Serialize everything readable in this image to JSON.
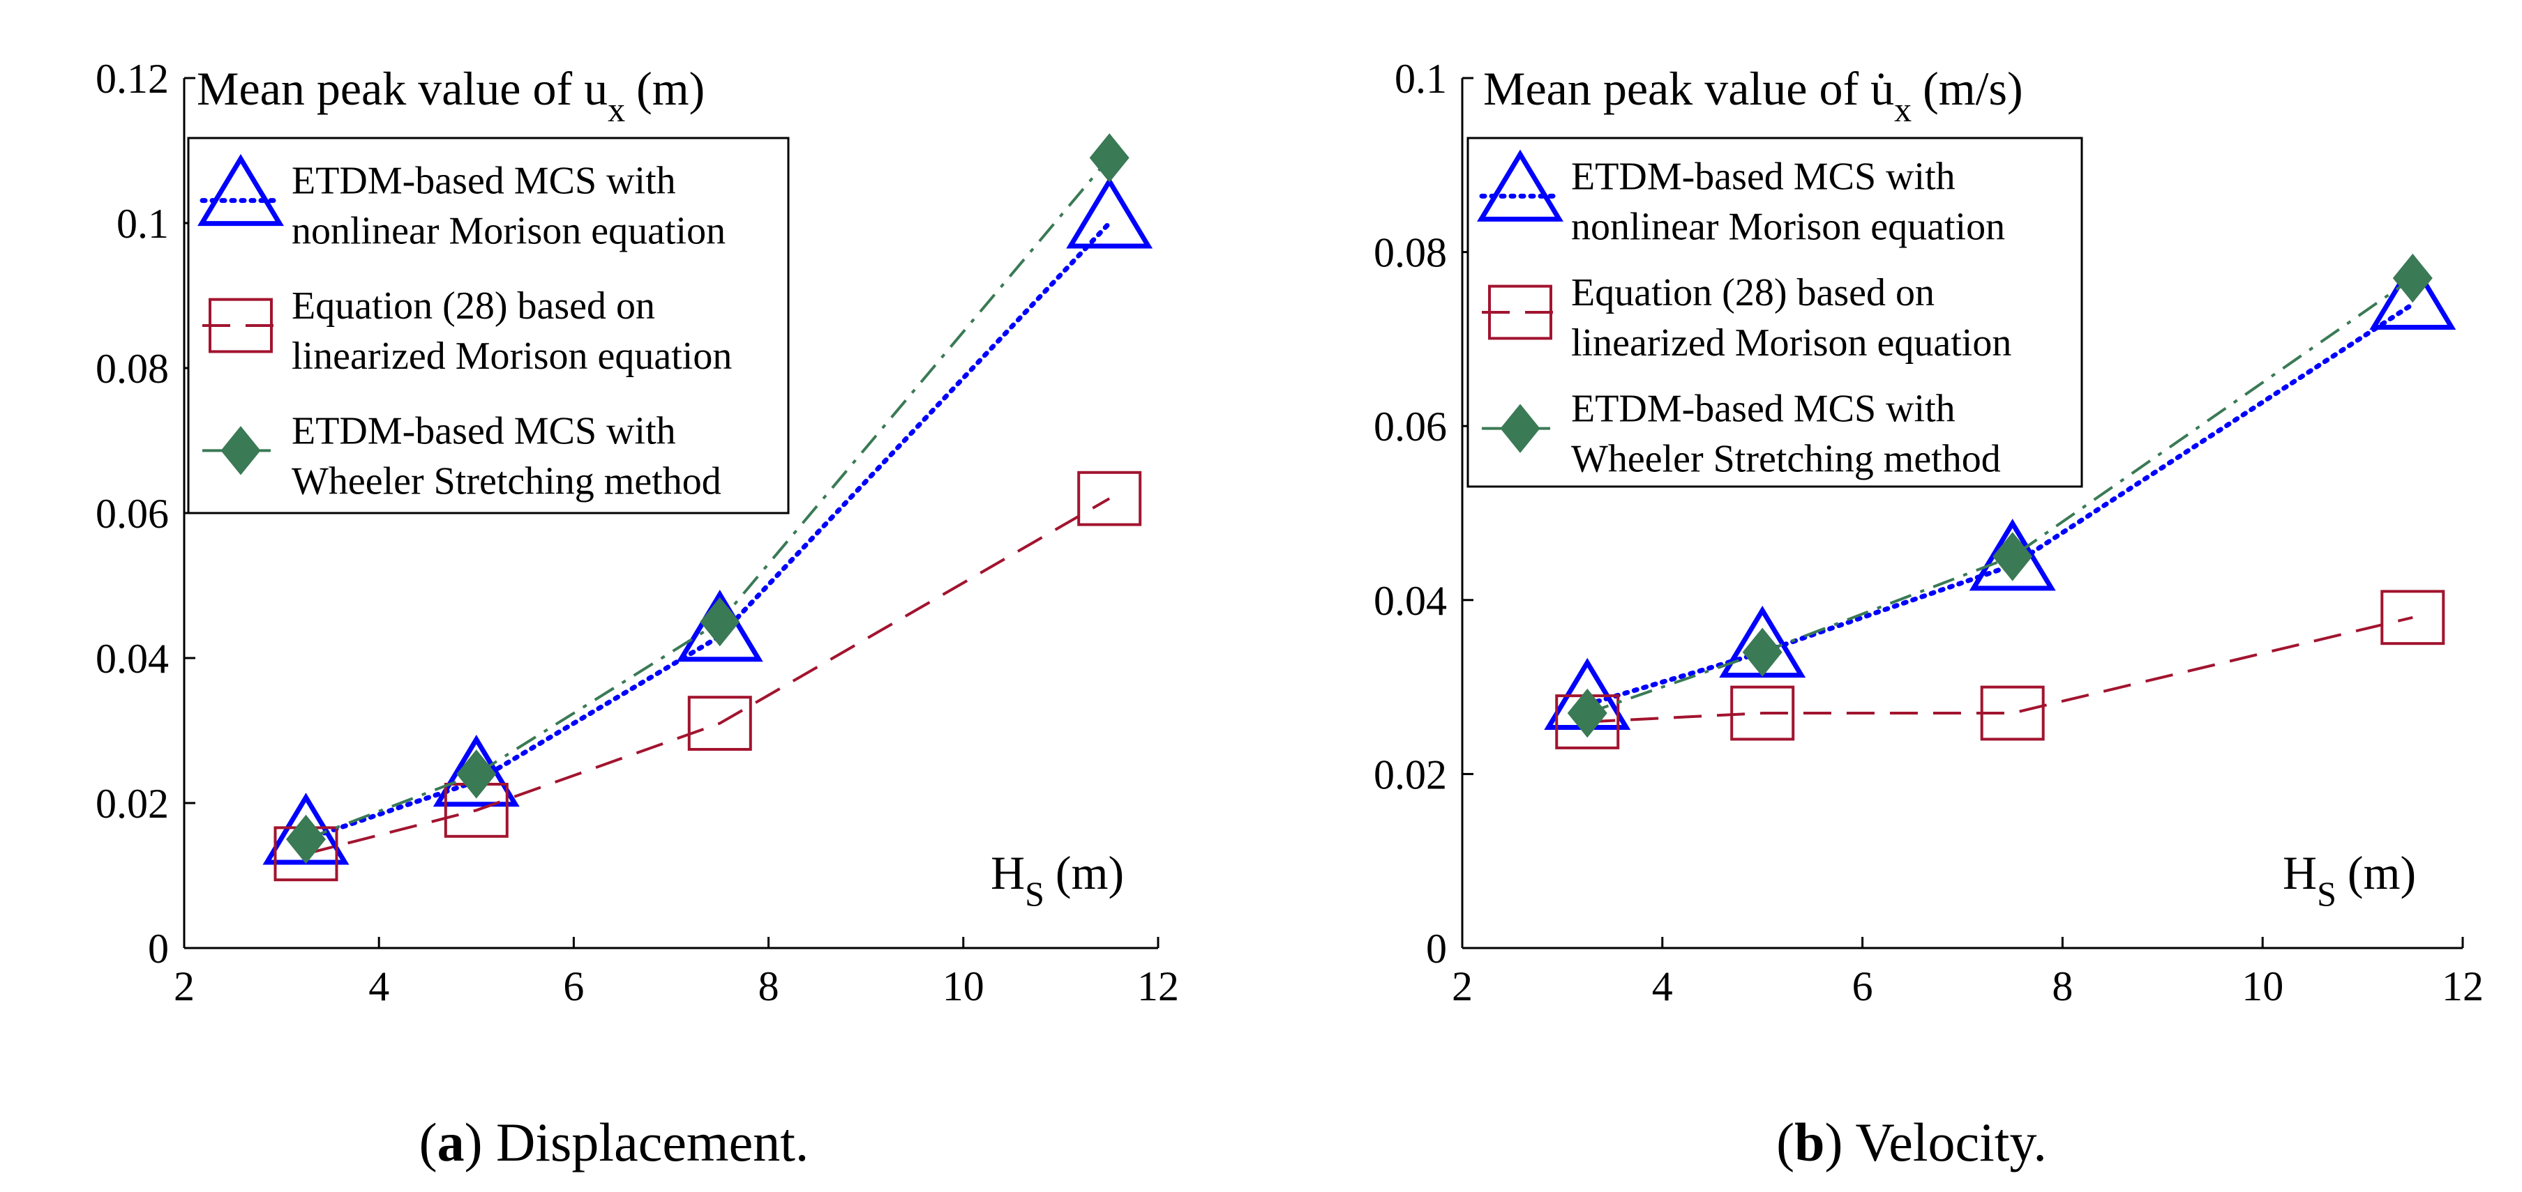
{
  "figure": {
    "panels": [
      {
        "caption_letter": "a",
        "caption_text": " Displacement."
      },
      {
        "caption_letter": "b",
        "caption_text": " Velocity."
      }
    ]
  },
  "chart_data": [
    {
      "type": "line",
      "ylabel_pre": "Mean peak value of u",
      "ylabel_sub": "x",
      "ylabel_post": "(m)",
      "xlabel_main": "H",
      "xlabel_sub": "S",
      "xlabel_post": "(m)",
      "xlim": [
        2,
        12
      ],
      "ylim": [
        0,
        0.12
      ],
      "xticks": [
        2,
        4,
        6,
        8,
        10,
        12
      ],
      "xtick_labels": [
        "2",
        "4",
        "6",
        "8",
        "10",
        "12"
      ],
      "yticks": [
        0,
        0.02,
        0.04,
        0.06,
        0.08,
        0.1,
        0.12
      ],
      "ytick_labels": [
        "0",
        "0.02",
        "0.04",
        "0.06",
        "0.08",
        "0.1",
        "0.12"
      ],
      "legend_position": "top-left",
      "series": [
        {
          "name_line1": "ETDM-based MCS with",
          "name_line2": "nonlinear Morison equation",
          "color": "#0000ff",
          "marker": "triangle",
          "dash": "dotted",
          "x": [
            3.25,
            5,
            7.5,
            11.5
          ],
          "values": [
            0.015,
            0.023,
            0.043,
            0.1
          ]
        },
        {
          "name_line1": "Equation (28) based on",
          "name_line2": "linearized Morison equation",
          "color": "#a2142f",
          "marker": "square",
          "dash": "dashed",
          "x": [
            3.25,
            5,
            7.5,
            11.5
          ],
          "values": [
            0.013,
            0.019,
            0.031,
            0.062
          ]
        },
        {
          "name_line1": "ETDM-based MCS with",
          "name_line2": "Wheeler Stretching method",
          "color": "#3a7a55",
          "marker": "diamond",
          "dash": "dashdot",
          "x": [
            3.25,
            5,
            7.5,
            11.5
          ],
          "values": [
            0.015,
            0.024,
            0.045,
            0.109
          ]
        }
      ]
    },
    {
      "type": "line",
      "ylabel_pre": "Mean peak value of u̇",
      "ylabel_sub": "x",
      "ylabel_post": "(m/s)",
      "xlabel_main": "H",
      "xlabel_sub": "S",
      "xlabel_post": "(m)",
      "xlim": [
        2,
        12
      ],
      "ylim": [
        0,
        0.1
      ],
      "xticks": [
        2,
        4,
        6,
        8,
        10,
        12
      ],
      "xtick_labels": [
        "2",
        "4",
        "6",
        "8",
        "10",
        "12"
      ],
      "yticks": [
        0,
        0.02,
        0.04,
        0.06,
        0.08,
        0.1
      ],
      "ytick_labels": [
        "0",
        "0.02",
        "0.04",
        "0.06",
        "0.08",
        "0.1"
      ],
      "legend_position": "top-left",
      "series": [
        {
          "name_line1": "ETDM-based MCS with",
          "name_line2": "nonlinear Morison equation",
          "color": "#0000ff",
          "marker": "triangle",
          "dash": "dotted",
          "x": [
            3.25,
            5,
            7.5,
            11.5
          ],
          "values": [
            0.028,
            0.034,
            0.044,
            0.074
          ]
        },
        {
          "name_line1": "Equation (28) based on",
          "name_line2": "linearized Morison equation",
          "color": "#a2142f",
          "marker": "square",
          "dash": "dashed",
          "x": [
            3.25,
            5,
            7.5,
            11.5
          ],
          "values": [
            0.026,
            0.027,
            0.027,
            0.038
          ]
        },
        {
          "name_line1": "ETDM-based MCS with",
          "name_line2": "Wheeler Stretching method",
          "color": "#3a7a55",
          "marker": "diamond",
          "dash": "dashdot",
          "x": [
            3.25,
            5,
            7.5,
            11.5
          ],
          "values": [
            0.027,
            0.034,
            0.045,
            0.077
          ]
        }
      ]
    }
  ]
}
